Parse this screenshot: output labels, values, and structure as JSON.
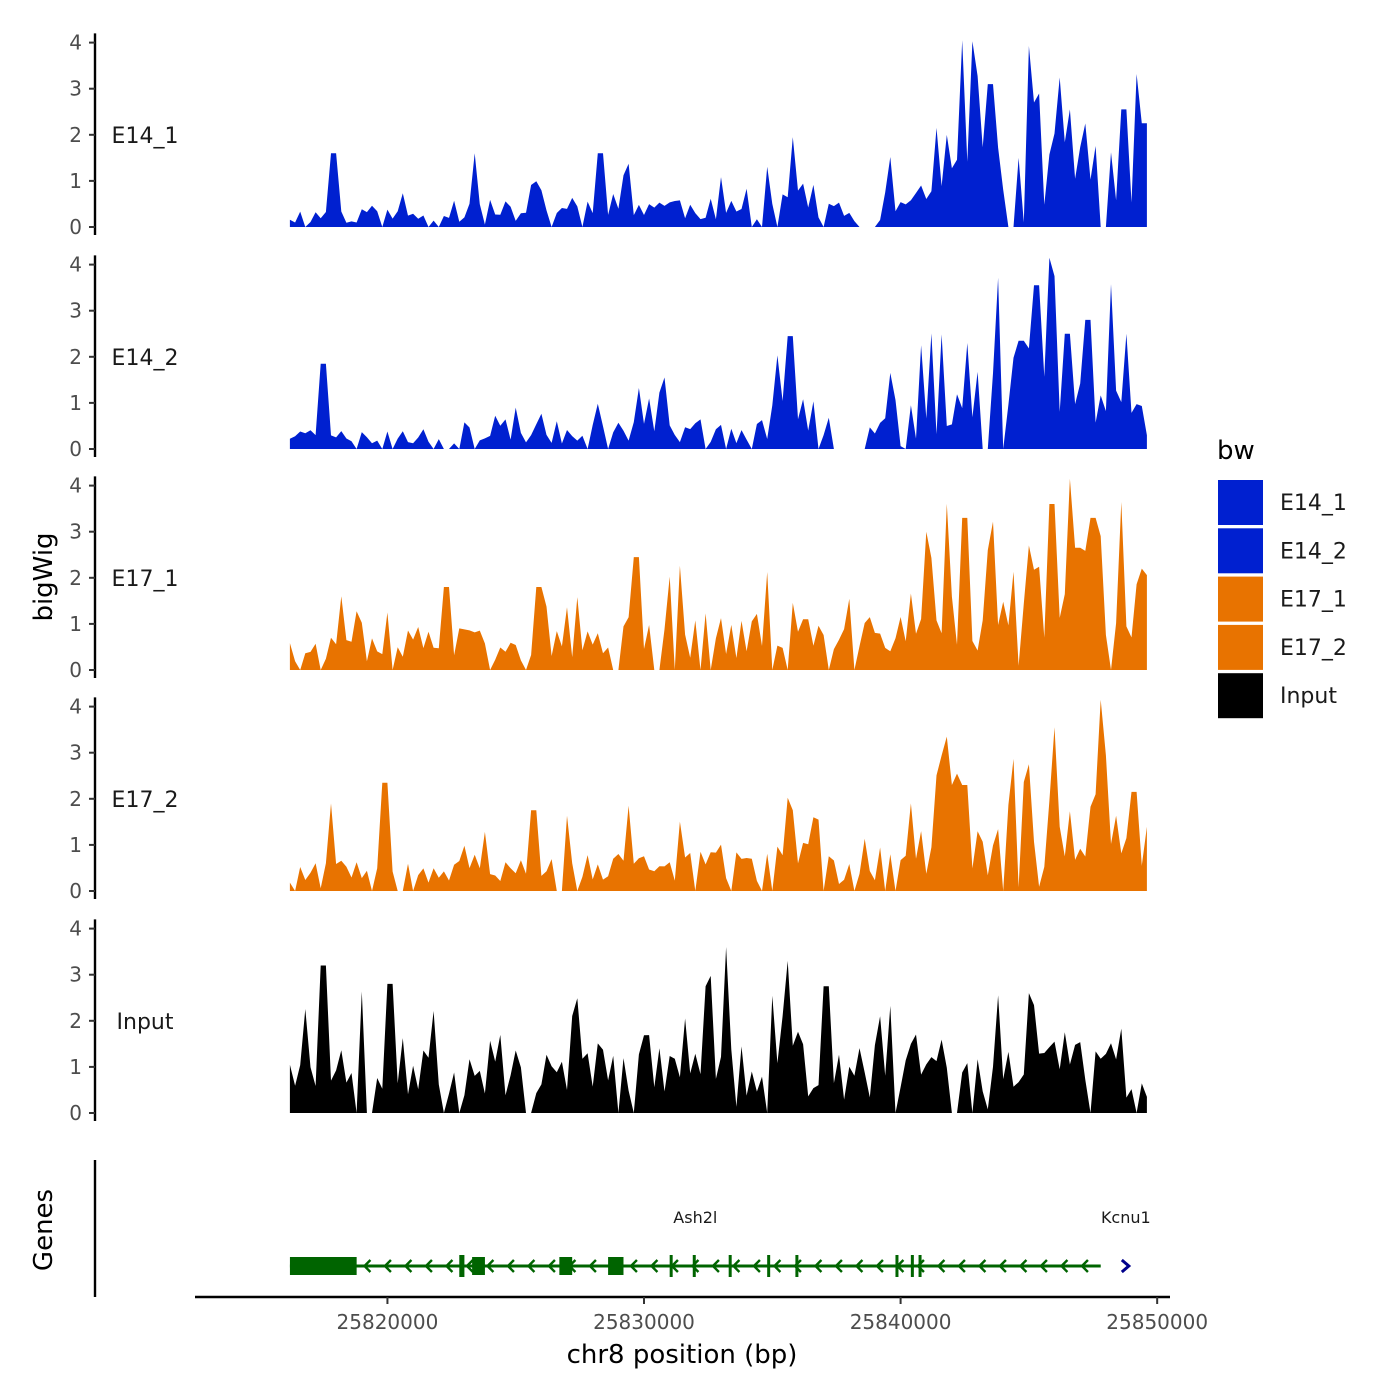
{
  "chart_data": {
    "type": "area",
    "title": "",
    "ylabel": "bigWig",
    "xlabel": "chr8 position (bp)",
    "genes_axis_label": "Genes",
    "xlim": [
      25812500,
      25850500
    ],
    "ylim": [
      0,
      4.2
    ],
    "y_ticks": [
      "0",
      "1",
      "2",
      "3",
      "4"
    ],
    "x_ticks": [
      25820000,
      25830000,
      25840000,
      25850000
    ],
    "x_tick_labels": [
      "25820000",
      "25830000",
      "25840000",
      "25850000"
    ],
    "data_range": [
      25816200,
      25849600
    ],
    "legend": {
      "title": "bw",
      "entries": [
        {
          "label": "E14_1",
          "color": "#0020D0"
        },
        {
          "label": "E14_2",
          "color": "#0020D0"
        },
        {
          "label": "E17_1",
          "color": "#E87300"
        },
        {
          "label": "E17_2",
          "color": "#E87300"
        },
        {
          "label": "Input",
          "color": "#000000"
        }
      ]
    },
    "series": [
      {
        "name": "E14_1",
        "color": "#0020D0",
        "seed": 11,
        "base": [
          [
            25816200,
            0.25
          ],
          [
            25822000,
            0.3
          ],
          [
            25827000,
            0.45
          ],
          [
            25830000,
            0.55
          ],
          [
            25834000,
            0.35
          ],
          [
            25836000,
            0.9
          ],
          [
            25838000,
            0.25
          ],
          [
            25840500,
            0.7
          ],
          [
            25842000,
            1.5
          ],
          [
            25844000,
            1.3
          ],
          [
            25846000,
            1.5
          ],
          [
            25849600,
            1.6
          ]
        ],
        "peaks": [
          [
            25817900,
            1.6
          ],
          [
            25823400,
            1.6
          ],
          [
            25828300,
            1.6
          ],
          [
            25835800,
            1.95
          ],
          [
            25841400,
            2.15
          ],
          [
            25842400,
            4.05
          ],
          [
            25843500,
            3.1
          ],
          [
            25845200,
            2.7
          ],
          [
            25846600,
            2.55
          ],
          [
            25848700,
            2.55
          ],
          [
            25849500,
            2.25
          ]
        ],
        "gaps": [
          [
            25838300,
            25839000
          ],
          [
            25844100,
            25844400
          ]
        ]
      },
      {
        "name": "E14_2",
        "color": "#0020D0",
        "seed": 23,
        "base": [
          [
            25816200,
            0.3
          ],
          [
            25822000,
            0.25
          ],
          [
            25827000,
            0.35
          ],
          [
            25830000,
            0.5
          ],
          [
            25834000,
            0.3
          ],
          [
            25836000,
            1.0
          ],
          [
            25838000,
            0.3
          ],
          [
            25840500,
            0.7
          ],
          [
            25842000,
            1.1
          ],
          [
            25844000,
            1.6
          ],
          [
            25846000,
            1.9
          ],
          [
            25849600,
            0.9
          ]
        ],
        "peaks": [
          [
            25817500,
            1.85
          ],
          [
            25830800,
            1.55
          ],
          [
            25835700,
            2.45
          ],
          [
            25839600,
            1.65
          ],
          [
            25842600,
            2.3
          ],
          [
            25844700,
            2.35
          ],
          [
            25845300,
            3.55
          ],
          [
            25845900,
            3.75
          ],
          [
            25846500,
            2.5
          ],
          [
            25847300,
            2.8
          ],
          [
            25848800,
            2.5
          ]
        ],
        "gaps": [
          [
            25822100,
            25822500
          ],
          [
            25838000,
            25838600
          ]
        ]
      },
      {
        "name": "E17_1",
        "color": "#E87300",
        "seed": 37,
        "base": [
          [
            25816200,
            0.55
          ],
          [
            25822000,
            0.65
          ],
          [
            25827000,
            0.5
          ],
          [
            25830000,
            0.85
          ],
          [
            25834000,
            0.8
          ],
          [
            25836000,
            1.05
          ],
          [
            25838000,
            0.55
          ],
          [
            25840500,
            1.3
          ],
          [
            25842000,
            1.6
          ],
          [
            25844000,
            1.0
          ],
          [
            25846000,
            2.0
          ],
          [
            25849600,
            1.4
          ]
        ],
        "peaks": [
          [
            25818200,
            1.6
          ],
          [
            25822300,
            1.8
          ],
          [
            25825900,
            1.8
          ],
          [
            25829700,
            2.45
          ],
          [
            25841000,
            3.0
          ],
          [
            25842500,
            3.3
          ],
          [
            25843500,
            2.6
          ],
          [
            25845000,
            2.7
          ],
          [
            25845900,
            3.6
          ],
          [
            25846900,
            2.65
          ],
          [
            25847500,
            3.3
          ],
          [
            25849400,
            2.2
          ]
        ],
        "gaps": []
      },
      {
        "name": "E17_2",
        "color": "#E87300",
        "seed": 53,
        "base": [
          [
            25816200,
            0.45
          ],
          [
            25822000,
            0.5
          ],
          [
            25827000,
            0.6
          ],
          [
            25830000,
            0.55
          ],
          [
            25834000,
            0.6
          ],
          [
            25836000,
            0.8
          ],
          [
            25838000,
            0.4
          ],
          [
            25840500,
            0.95
          ],
          [
            25842000,
            1.4
          ],
          [
            25844000,
            0.9
          ],
          [
            25846000,
            1.6
          ],
          [
            25849600,
            1.8
          ]
        ],
        "peaks": [
          [
            25817800,
            1.9
          ],
          [
            25819900,
            2.35
          ],
          [
            25825700,
            1.75
          ],
          [
            25829400,
            1.85
          ],
          [
            25835800,
            1.75
          ],
          [
            25840400,
            1.9
          ],
          [
            25841800,
            3.35
          ],
          [
            25842500,
            2.3
          ],
          [
            25845000,
            2.75
          ],
          [
            25846000,
            3.55
          ],
          [
            25847600,
            2.1
          ],
          [
            25849100,
            2.15
          ]
        ],
        "gaps": []
      },
      {
        "name": "Input",
        "color": "#000000",
        "seed": 71,
        "base": [
          [
            25816200,
            0.9
          ],
          [
            25822000,
            0.95
          ],
          [
            25827000,
            1.0
          ],
          [
            25830000,
            1.15
          ],
          [
            25834000,
            1.0
          ],
          [
            25836000,
            1.1
          ],
          [
            25838000,
            0.95
          ],
          [
            25840500,
            1.2
          ],
          [
            25842000,
            1.1
          ],
          [
            25844000,
            1.0
          ],
          [
            25846000,
            1.15
          ],
          [
            25849600,
            1.05
          ]
        ],
        "peaks": [
          [
            25817500,
            3.2
          ],
          [
            25820100,
            2.8
          ],
          [
            25831600,
            2.05
          ],
          [
            25833200,
            3.6
          ],
          [
            25835600,
            3.3
          ],
          [
            25837100,
            2.75
          ],
          [
            25839200,
            2.1
          ],
          [
            25843800,
            2.55
          ],
          [
            25845000,
            2.6
          ],
          [
            25846400,
            1.75
          ]
        ],
        "gaps": []
      }
    ],
    "genes": [
      {
        "name": "Ash2l",
        "strand": "-",
        "color": "#006400",
        "start": 25816200,
        "end": 25847800,
        "exons": [
          [
            25816200,
            25818800
          ],
          [
            25822800,
            25823000
          ],
          [
            25823300,
            25823800
          ],
          [
            25826700,
            25827200
          ],
          [
            25828600,
            25829200
          ],
          [
            25831000,
            25831100
          ],
          [
            25831900,
            25832000
          ],
          [
            25833300,
            25833400
          ],
          [
            25834800,
            25834900
          ],
          [
            25835900,
            25836000
          ],
          [
            25839800,
            25839900
          ],
          [
            25840400,
            25840500
          ],
          [
            25840700,
            25840800
          ]
        ]
      },
      {
        "name": "Kcnu1",
        "strand": "+",
        "color": "#00008B",
        "start": 25848700,
        "end": 25850400,
        "exons": []
      }
    ]
  }
}
